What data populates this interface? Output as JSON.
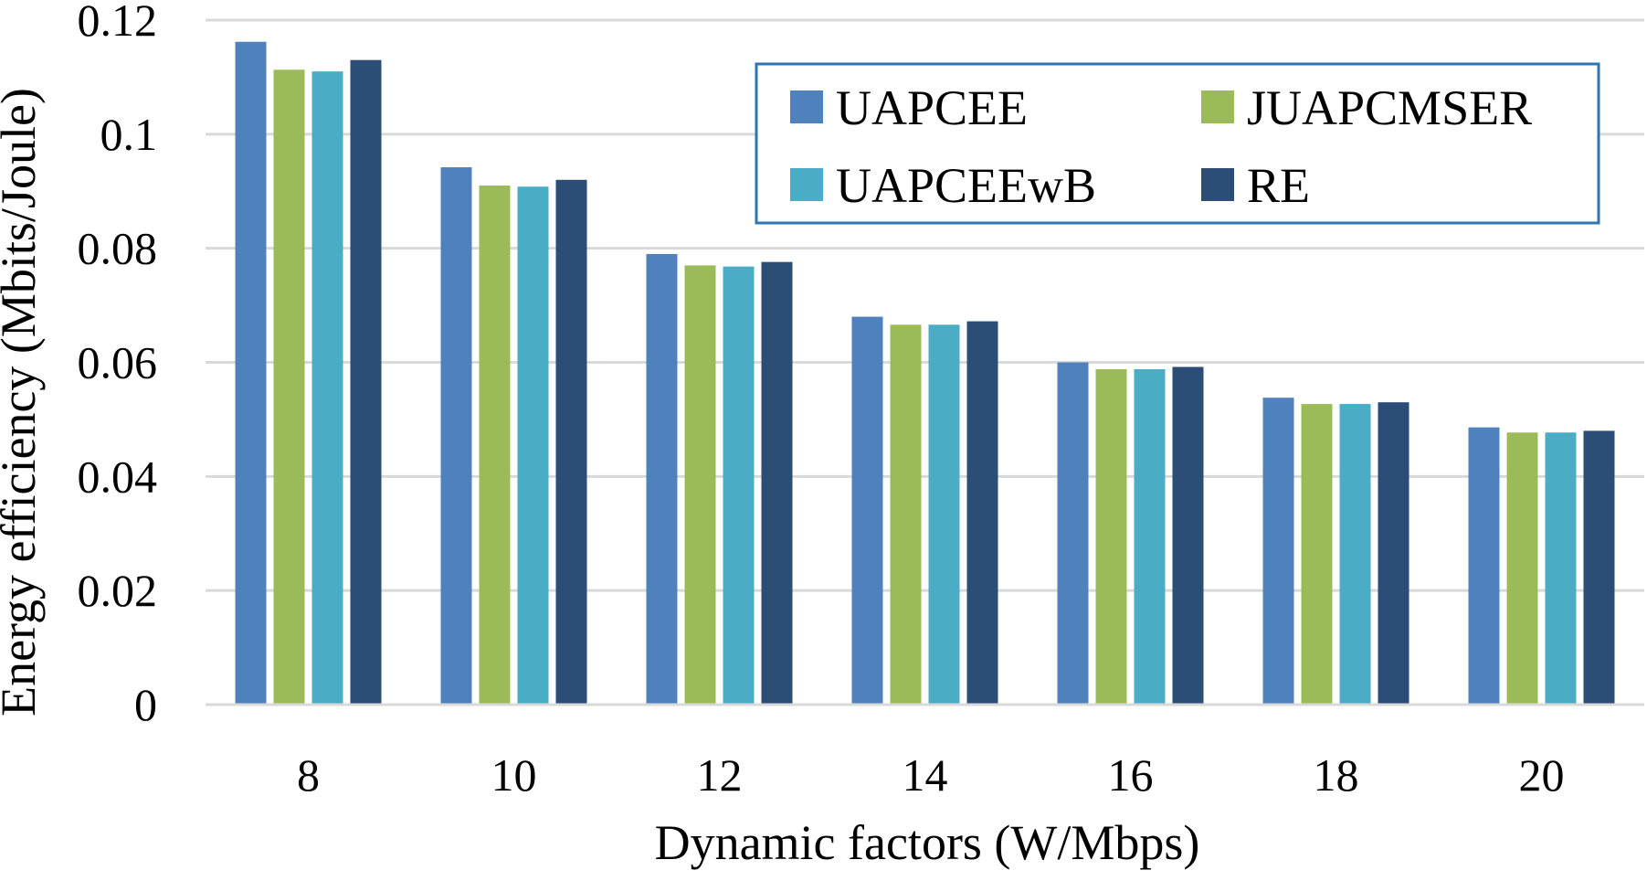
{
  "chart_data": {
    "type": "bar",
    "title": "",
    "xlabel": "Dynamic factors (W/Mbps)",
    "ylabel": "Energy efficiency (Mbits/Joule)",
    "categories": [
      "8",
      "10",
      "12",
      "14",
      "16",
      "18",
      "20"
    ],
    "ylim": [
      0,
      0.12
    ],
    "yticks": [
      0,
      0.02,
      0.04,
      0.06,
      0.08,
      0.1,
      0.12
    ],
    "ytick_labels": [
      "0",
      "0.02",
      "0.04",
      "0.06",
      "0.08",
      "0.1",
      "0.12"
    ],
    "grid": true,
    "legend_position": "top-right",
    "series": [
      {
        "name": "UAPCEE",
        "color": "#4f81bd",
        "values": [
          0.1162,
          0.0942,
          0.079,
          0.068,
          0.06,
          0.0538,
          0.0486
        ]
      },
      {
        "name": "JUAPCMSER",
        "color": "#9bbb59",
        "values": [
          0.1113,
          0.091,
          0.077,
          0.0666,
          0.0588,
          0.0527,
          0.0477
        ]
      },
      {
        "name": "UAPCEEwB",
        "color": "#4bacc6",
        "values": [
          0.111,
          0.0908,
          0.0768,
          0.0666,
          0.0588,
          0.0527,
          0.0477
        ]
      },
      {
        "name": "RE",
        "color": "#2c4d75",
        "values": [
          0.113,
          0.092,
          0.0776,
          0.0672,
          0.0592,
          0.053,
          0.048
        ]
      }
    ],
    "colors": {
      "grid": "#d9d9d9",
      "legend_border": "#2e75b6"
    }
  }
}
